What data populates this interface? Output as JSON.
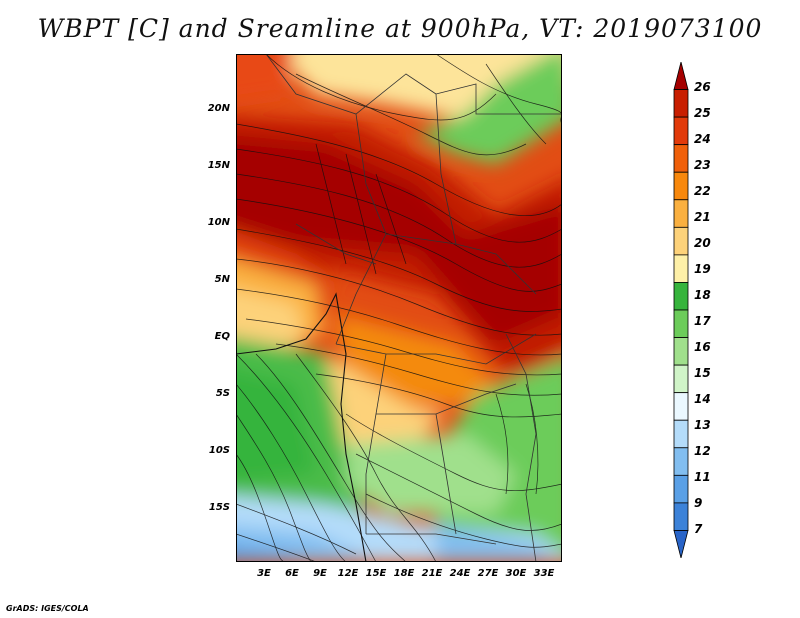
{
  "title": "WBPT [C] and Sreamline at 900hPa, VT: 2019073100",
  "credit": "GrADS: IGES/COLA",
  "map": {
    "lat_labels": [
      "20N",
      "15N",
      "10N",
      "5N",
      "EQ",
      "5S",
      "10S",
      "15S"
    ],
    "lon_labels": [
      "3E",
      "6E",
      "9E",
      "12E",
      "15E",
      "18E",
      "21E",
      "24E",
      "27E",
      "30E",
      "33E"
    ]
  },
  "colorbar": {
    "labels": [
      "26",
      "25",
      "24",
      "23",
      "22",
      "21",
      "20",
      "19",
      "18",
      "17",
      "16",
      "15",
      "14",
      "13",
      "12",
      "11",
      "9",
      "7"
    ],
    "colors": [
      "#a50000",
      "#c81e00",
      "#e23a0a",
      "#f0600a",
      "#f8880c",
      "#fab040",
      "#fdd27a",
      "#fef0a8",
      "#36b43c",
      "#6ccc5a",
      "#a0e08c",
      "#d0f4c8",
      "#ebf8ff",
      "#b4dcfa",
      "#82bef0",
      "#5aa0e6",
      "#3c82d8",
      "#2864c8"
    ]
  }
}
